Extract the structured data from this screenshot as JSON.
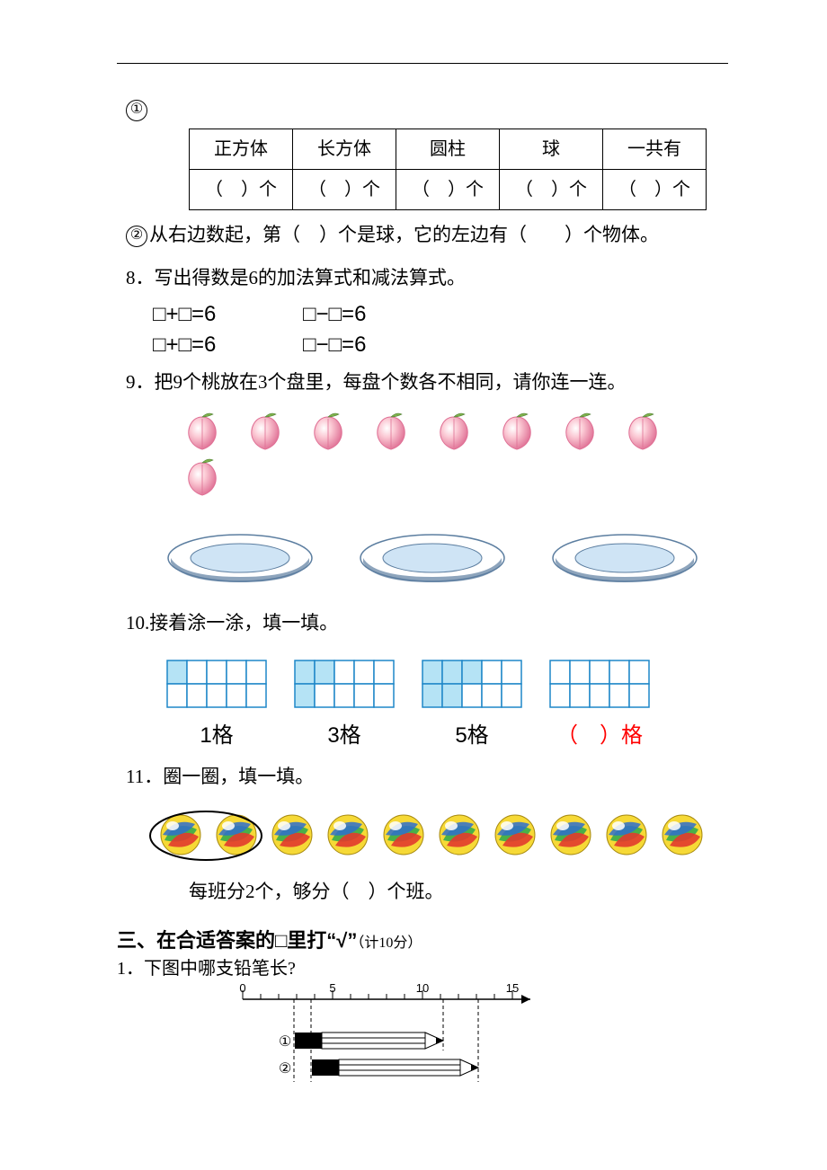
{
  "q1": {
    "circle_label": "①",
    "table": {
      "headers": [
        "正方体",
        "长方体",
        "圆柱",
        "球",
        "一共有"
      ],
      "cells": [
        "（　）个",
        "（　）个",
        "（　）个",
        "（　）个",
        "（　）个"
      ]
    },
    "line2_circle": "②",
    "line2_text": "从右边数起，第（　）个是球，它的左边有（　　）个物体。"
  },
  "q8": {
    "prompt": "8．写出得数是6的加法算式和减法算式。",
    "eq_add": "□+□=6",
    "eq_sub": "□−□=6"
  },
  "q9": {
    "prompt": "9．把9个桃放在3个盘里，每盘个数各不相同，请你连一连。",
    "peach_count": 9,
    "plate_count": 3,
    "peach_fill": "#fbc9d4",
    "peach_stroke": "#df6f94",
    "leaf_color": "#7fb24c",
    "plate_outer": "#ffffff",
    "plate_outer_stroke": "#5c7ea0",
    "plate_inner": "#cfe4f5",
    "plate_shadow": "#5c7ea0"
  },
  "q10": {
    "prompt": "10.接着涂一涂，填一填。",
    "grids": [
      {
        "filled": [
          [
            0,
            0
          ]
        ],
        "label": "1格"
      },
      {
        "filled": [
          [
            0,
            0
          ],
          [
            0,
            1
          ],
          [
            1,
            0
          ]
        ],
        "label": "3格"
      },
      {
        "filled": [
          [
            0,
            0
          ],
          [
            0,
            1
          ],
          [
            0,
            2
          ],
          [
            1,
            0
          ],
          [
            1,
            1
          ]
        ],
        "label": "5格"
      },
      {
        "filled": [],
        "label_prefix": "（",
        "label_suffix": "）格",
        "label_color": "#ff0000"
      }
    ],
    "cell_fill": "#b5e3f5",
    "cell_stroke": "#1e87c8",
    "cols": 5,
    "rows": 2
  },
  "q11": {
    "prompt": "11．圈一圈，填一填。",
    "marble_count": 10,
    "circled_first": 2,
    "line2": "每班分2个，够分（　）个班。",
    "marble_colors": {
      "yellow": "#f6d936",
      "green": "#3fae4b",
      "red": "#e23a2e",
      "blue": "#2f6ecc",
      "highlight": "#ffffff"
    }
  },
  "section3": {
    "heading": "三、在合适答案的□里打“√”",
    "points": "（计10分）",
    "q1": "1．下图中哪支铅笔长?",
    "ruler": {
      "ticks": [
        0,
        5,
        10,
        15
      ],
      "pencil1_label": "①",
      "pencil2_label": "②"
    }
  }
}
